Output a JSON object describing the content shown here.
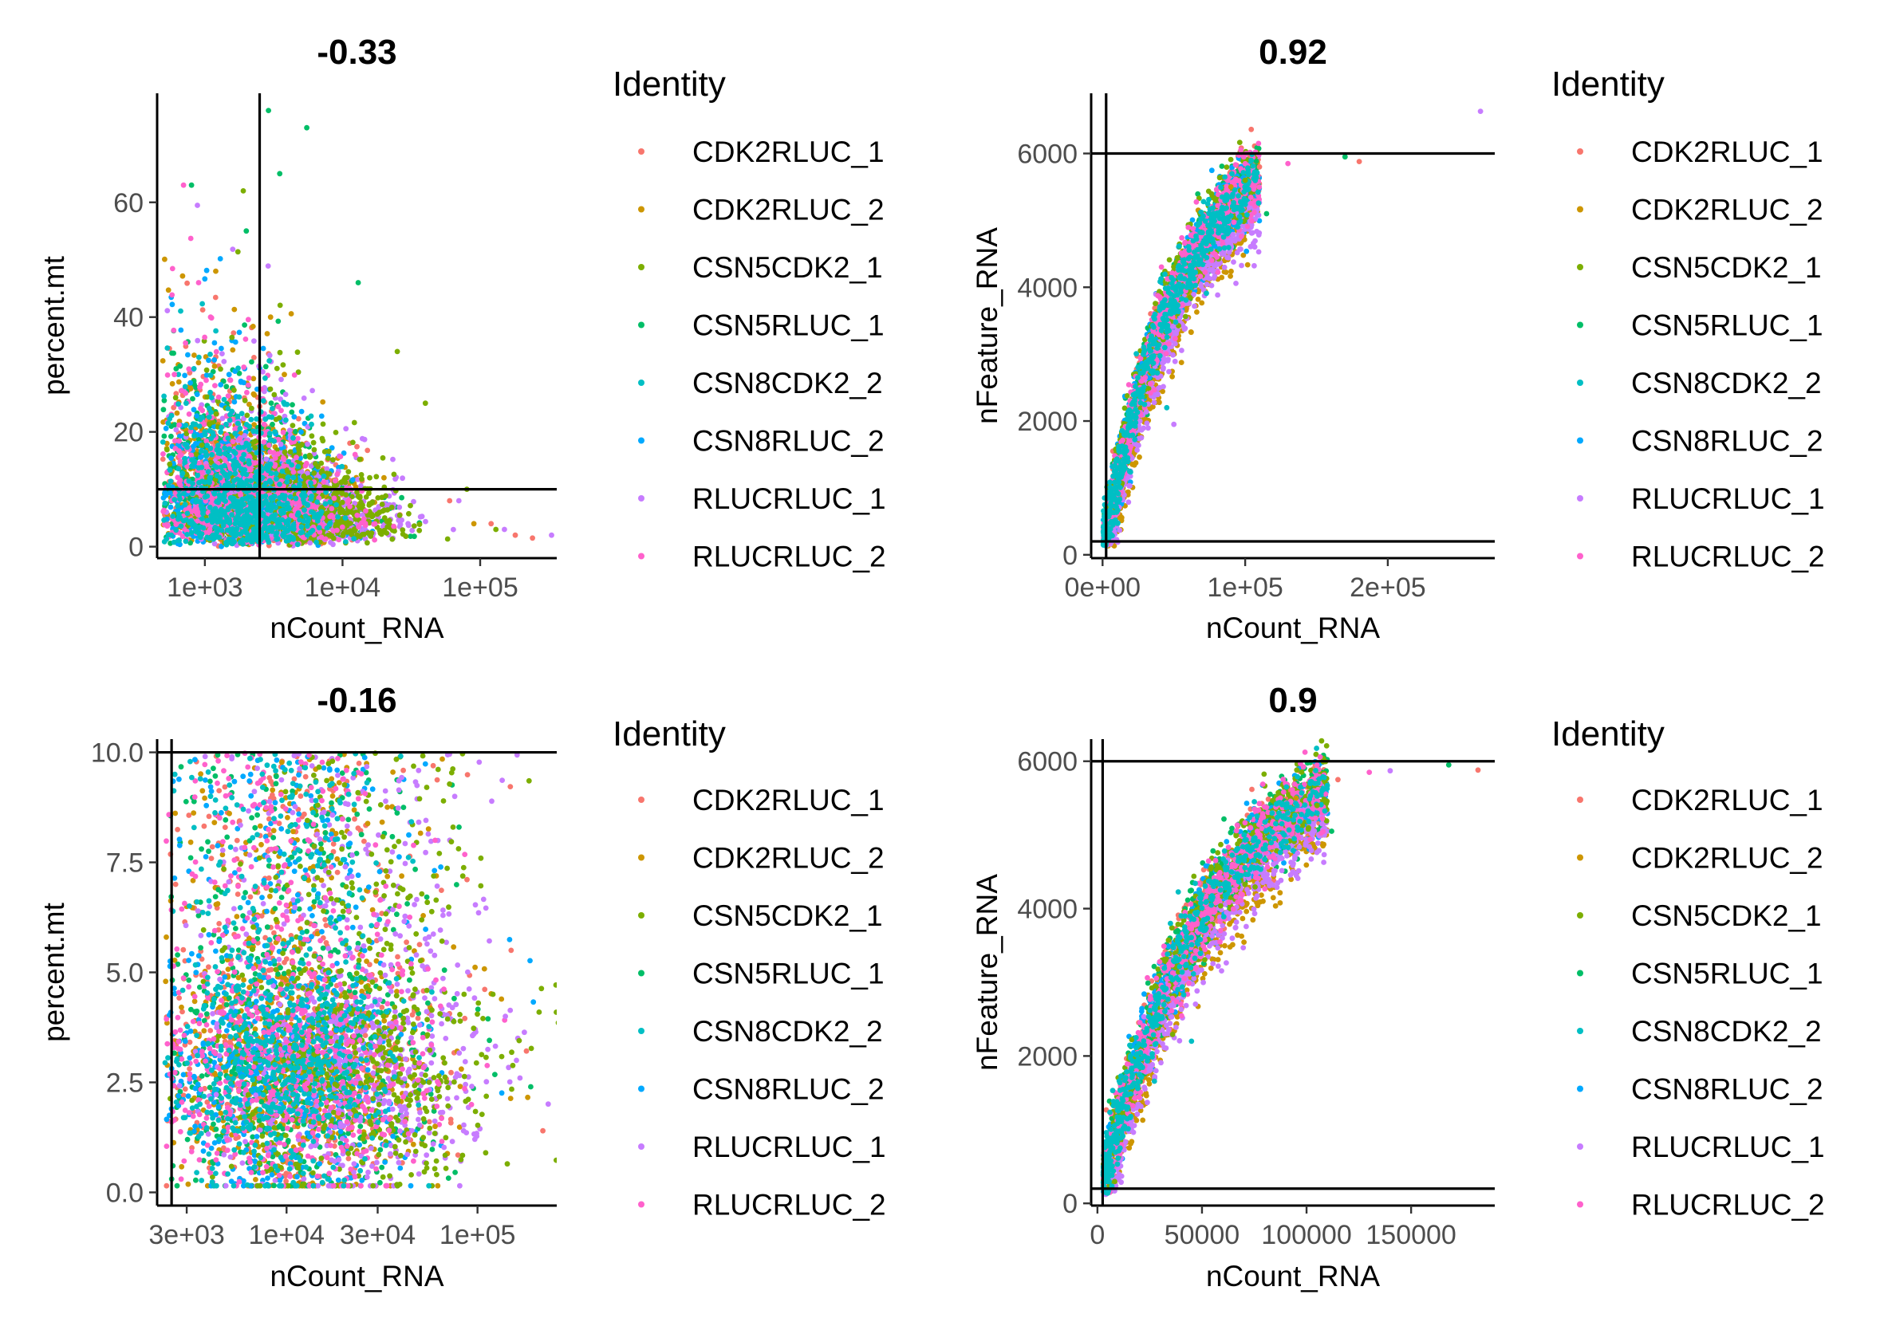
{
  "legend": {
    "title": "Identity",
    "entries": [
      {
        "label": "CDK2RLUC_1",
        "color": "#F8766D"
      },
      {
        "label": "CDK2RLUC_2",
        "color": "#CD9600"
      },
      {
        "label": "CSN5CDK2_1",
        "color": "#7CAE00"
      },
      {
        "label": "CSN5RLUC_1",
        "color": "#00BE67"
      },
      {
        "label": "CSN8CDK2_2",
        "color": "#00BFC4"
      },
      {
        "label": "CSN8RLUC_2",
        "color": "#00A9FF"
      },
      {
        "label": "RLUCRLUC_1",
        "color": "#C77CFF"
      },
      {
        "label": "RLUCRLUC_2",
        "color": "#FF61CC"
      }
    ]
  },
  "chart_data": [
    {
      "type": "scatter",
      "title": "-0.33",
      "xlabel": "nCount_RNA",
      "ylabel": "percent.mt",
      "x_scale": "log10",
      "xlim": [
        450,
        360000
      ],
      "ylim": [
        -2,
        79
      ],
      "x_ticks": [
        {
          "value": 1000,
          "label": "1e+03"
        },
        {
          "value": 10000,
          "label": "1e+04"
        },
        {
          "value": 100000,
          "label": "1e+05"
        }
      ],
      "y_ticks": [
        {
          "value": 0,
          "label": "0"
        },
        {
          "value": 20,
          "label": "20"
        },
        {
          "value": 40,
          "label": "40"
        },
        {
          "value": 60,
          "label": "60"
        }
      ],
      "vlines": [
        2500
      ],
      "hlines": [
        10
      ],
      "cloud": {
        "center_x": 1800,
        "spread_x_log": 0.3,
        "center_y": 7,
        "spread_y": 6,
        "relation": "negative"
      },
      "series": [
        {
          "name": "CDK2RLUC_1",
          "points": [
            [
              180000,
              2
            ],
            [
              240000,
              1.5
            ],
            [
              120000,
              4
            ],
            [
              60000,
              8
            ]
          ]
        },
        {
          "name": "CDK2RLUC_2",
          "points": [
            [
              1200,
              48
            ],
            [
              3000,
              40
            ],
            [
              20000,
              12
            ],
            [
              90000,
              4
            ]
          ]
        },
        {
          "name": "CSN5CDK2_1",
          "points": [
            [
              1900,
              62
            ],
            [
              25000,
              34
            ],
            [
              40000,
              25
            ],
            [
              80000,
              10
            ],
            [
              130000,
              3
            ]
          ]
        },
        {
          "name": "CSN5RLUC_1",
          "points": [
            [
              2900,
              76
            ],
            [
              5500,
              73
            ],
            [
              3500,
              65
            ],
            [
              800,
              63
            ],
            [
              2000,
              55
            ],
            [
              13000,
              46
            ]
          ]
        },
        {
          "name": "CSN8CDK2_2",
          "points": [
            [
              1000,
              20
            ],
            [
              2000,
              18
            ],
            [
              4000,
              12
            ]
          ]
        },
        {
          "name": "CSN8RLUC_2",
          "points": [
            [
              1500,
              30
            ],
            [
              5000,
              20
            ]
          ]
        },
        {
          "name": "RLUCRLUC_1",
          "points": [
            [
              330000,
              2
            ],
            [
              150000,
              3
            ],
            [
              70000,
              8
            ]
          ]
        },
        {
          "name": "RLUCRLUC_2",
          "points": [
            [
              700,
              63
            ],
            [
              900,
              46
            ],
            [
              1100,
              40
            ],
            [
              600,
              30
            ]
          ]
        }
      ]
    },
    {
      "type": "scatter",
      "title": "0.92",
      "xlabel": "nCount_RNA",
      "ylabel": "nFeature_RNA",
      "x_scale": "linear",
      "xlim": [
        -8000,
        275000
      ],
      "ylim": [
        -50,
        6900
      ],
      "x_ticks": [
        {
          "value": 0,
          "label": "0e+00"
        },
        {
          "value": 100000,
          "label": "1e+05"
        },
        {
          "value": 200000,
          "label": "2e+05"
        }
      ],
      "y_ticks": [
        {
          "value": 0,
          "label": "0"
        },
        {
          "value": 2000,
          "label": "2000"
        },
        {
          "value": 4000,
          "label": "4000"
        },
        {
          "value": 6000,
          "label": "6000"
        }
      ],
      "vlines": [
        2500
      ],
      "hlines": [
        200,
        6000
      ],
      "curve": {
        "a": 6500,
        "b": 55000,
        "x_min": 500,
        "x_max": 110000
      },
      "series": [
        {
          "name": "CDK2RLUC_1",
          "points": [
            [
              180000,
              5880
            ],
            [
              110000,
              5800
            ]
          ]
        },
        {
          "name": "CDK2RLUC_2",
          "points": [
            [
              90000,
              5500
            ]
          ]
        },
        {
          "name": "CSN5CDK2_1",
          "points": [
            [
              100000,
              5600
            ]
          ]
        },
        {
          "name": "CSN5RLUC_1",
          "points": [
            [
              170000,
              5950
            ],
            [
              115000,
              5100
            ]
          ]
        },
        {
          "name": "CSN8CDK2_2",
          "points": [
            [
              45000,
              2200
            ]
          ]
        },
        {
          "name": "CSN8RLUC_2",
          "points": []
        },
        {
          "name": "RLUCRLUC_1",
          "points": [
            [
              265000,
              6630
            ],
            [
              50000,
              1950
            ],
            [
              40000,
              2500
            ]
          ]
        },
        {
          "name": "RLUCRLUC_2",
          "points": [
            [
              130000,
              5850
            ]
          ]
        }
      ]
    },
    {
      "type": "scatter",
      "title": "-0.16",
      "xlabel": "nCount_RNA",
      "ylabel": "percent.mt",
      "x_scale": "log10",
      "xlim": [
        2100,
        260000
      ],
      "ylim": [
        -0.3,
        10.3
      ],
      "x_ticks": [
        {
          "value": 3000,
          "label": "3e+03"
        },
        {
          "value": 10000,
          "label": "1e+04"
        },
        {
          "value": 30000,
          "label": "3e+04"
        },
        {
          "value": 100000,
          "label": "1e+05"
        }
      ],
      "y_ticks": [
        {
          "value": 0,
          "label": "0.0"
        },
        {
          "value": 2.5,
          "label": "2.5"
        },
        {
          "value": 5,
          "label": "5.0"
        },
        {
          "value": 7.5,
          "label": "7.5"
        },
        {
          "value": 10,
          "label": "10.0"
        }
      ],
      "vlines": [
        2500
      ],
      "hlines": [
        10
      ],
      "cloud": {
        "center_x": 10000,
        "spread_x_log": 0.3,
        "center_y": 2.8,
        "spread_y": 1.2,
        "relation": "flat"
      },
      "series": [
        {
          "name": "CDK2RLUC_1",
          "points": [
            [
              220000,
              1.4
            ],
            [
              150000,
              5.5
            ]
          ]
        },
        {
          "name": "CDK2RLUC_2",
          "points": [
            [
              60000,
              1.5
            ]
          ]
        },
        {
          "name": "CSN5CDK2_1",
          "points": [
            [
              45000,
              0.4
            ]
          ]
        },
        {
          "name": "CSN5RLUC_1",
          "points": [
            [
              190000,
              2.4
            ],
            [
              80000,
              8.3
            ]
          ]
        },
        {
          "name": "CSN8CDK2_2",
          "points": [
            [
              2600,
              9.5
            ],
            [
              4000,
              9.0
            ]
          ]
        },
        {
          "name": "CSN8RLUC_2",
          "points": []
        },
        {
          "name": "RLUCRLUC_1",
          "points": [
            [
              160000,
              3.0
            ],
            [
              140000,
              4.0
            ]
          ]
        },
        {
          "name": "RLUCRLUC_2",
          "points": [
            [
              60000,
              8.0
            ]
          ]
        }
      ]
    },
    {
      "type": "scatter",
      "title": "0.9",
      "xlabel": "nCount_RNA",
      "ylabel": "nFeature_RNA",
      "x_scale": "linear",
      "xlim": [
        -3000,
        190000
      ],
      "ylim": [
        -30,
        6300
      ],
      "x_ticks": [
        {
          "value": 0,
          "label": "0"
        },
        {
          "value": 50000,
          "label": "50000"
        },
        {
          "value": 100000,
          "label": "100000"
        },
        {
          "value": 150000,
          "label": "150000"
        }
      ],
      "y_ticks": [
        {
          "value": 0,
          "label": "0"
        },
        {
          "value": 2000,
          "label": "2000"
        },
        {
          "value": 4000,
          "label": "4000"
        },
        {
          "value": 6000,
          "label": "6000"
        }
      ],
      "vlines": [
        2500
      ],
      "hlines": [
        200,
        6000
      ],
      "curve": {
        "a": 6500,
        "b": 55000,
        "x_min": 2800,
        "x_max": 110000
      },
      "series": [
        {
          "name": "CDK2RLUC_1",
          "points": [
            [
              182000,
              5880
            ],
            [
              115000,
              5750
            ]
          ]
        },
        {
          "name": "CDK2RLUC_2",
          "points": [
            [
              95000,
              5500
            ]
          ]
        },
        {
          "name": "CSN5CDK2_1",
          "points": [
            [
              105000,
              5400
            ]
          ]
        },
        {
          "name": "CSN5RLUC_1",
          "points": [
            [
              168000,
              5950
            ],
            [
              112000,
              5050
            ]
          ]
        },
        {
          "name": "CSN8CDK2_2",
          "points": [
            [
              45000,
              2200
            ]
          ]
        },
        {
          "name": "CSN8RLUC_2",
          "points": []
        },
        {
          "name": "RLUCRLUC_1",
          "points": [
            [
              140000,
              5870
            ],
            [
              28000,
              1800
            ]
          ]
        },
        {
          "name": "RLUCRLUC_2",
          "points": [
            [
              130000,
              5850
            ]
          ]
        }
      ]
    }
  ]
}
